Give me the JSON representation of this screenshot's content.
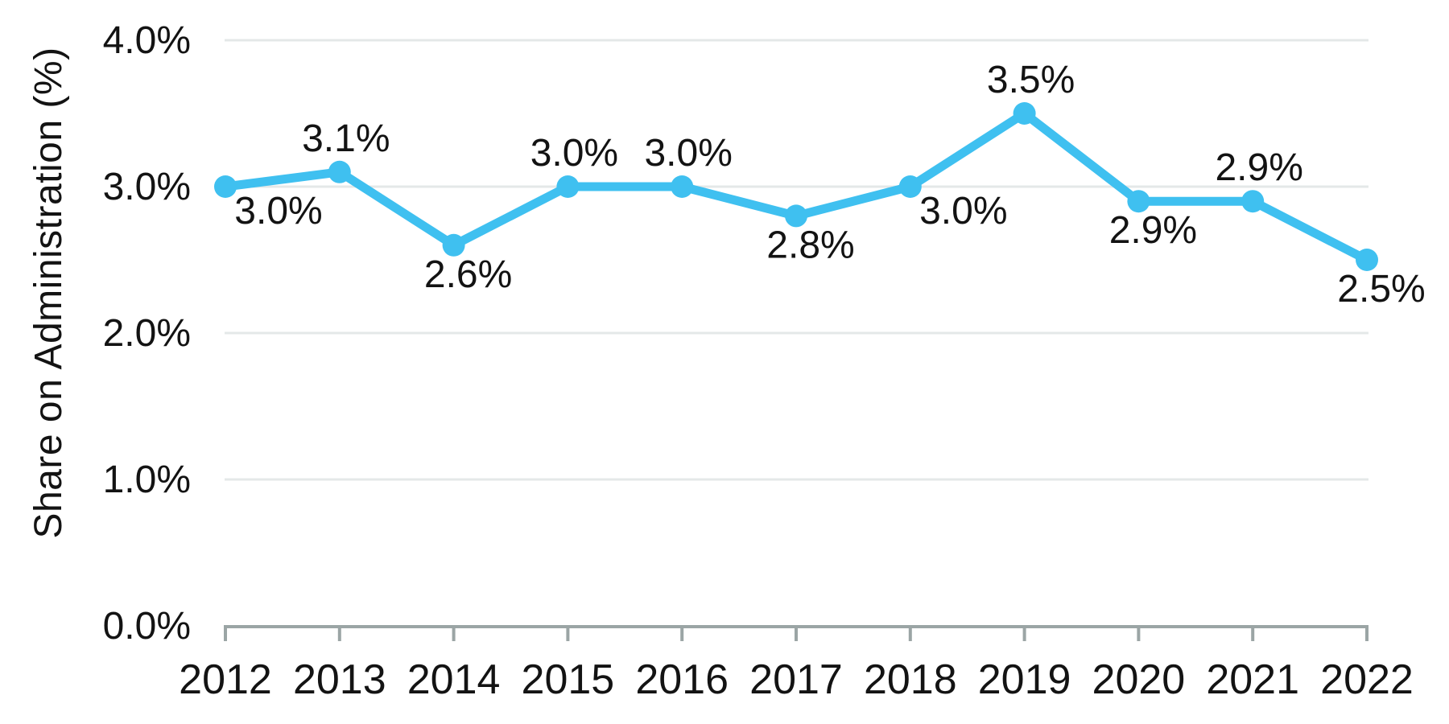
{
  "chart_data": {
    "type": "line",
    "title": "",
    "xlabel": "",
    "ylabel": "Share on Administration (%)",
    "categories": [
      "2012",
      "2013",
      "2014",
      "2015",
      "2016",
      "2017",
      "2018",
      "2019",
      "2020",
      "2021",
      "2022"
    ],
    "series": [
      {
        "name": "Share on Administration",
        "values": [
          3.0,
          3.1,
          2.6,
          3.0,
          3.0,
          2.8,
          3.0,
          3.5,
          2.9,
          2.9,
          2.5
        ],
        "point_labels": [
          "3.0%",
          "3.1%",
          "2.6%",
          "3.0%",
          "3.0%",
          "2.8%",
          "3.0%",
          "3.5%",
          "2.9%",
          "2.9%",
          "2.5%"
        ],
        "label_positions": [
          "below-right",
          "above",
          "below",
          "above",
          "above",
          "below",
          "below-right",
          "above",
          "below",
          "above",
          "below"
        ]
      }
    ],
    "y_ticks": [
      {
        "label": "0.0%",
        "value": 0.0
      },
      {
        "label": "1.0%",
        "value": 1.0
      },
      {
        "label": "2.0%",
        "value": 2.0
      },
      {
        "label": "3.0%",
        "value": 3.0
      },
      {
        "label": "4.0%",
        "value": 4.0
      }
    ],
    "ylim": [
      0.0,
      4.0
    ],
    "grid": "horizontal",
    "legend_position": "none",
    "marker": "circle",
    "colors": {
      "line": "#3FC0F0",
      "marker": "#3FC0F0",
      "gridline": "#E4E8E8",
      "axis": "#9BA5A5",
      "text": "#131313"
    }
  }
}
